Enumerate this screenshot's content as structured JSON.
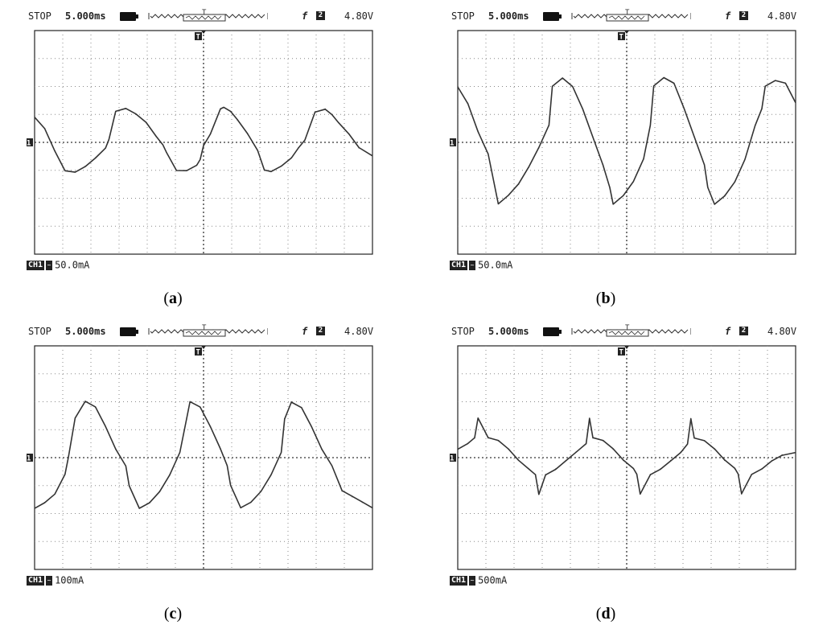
{
  "panels": [
    {
      "status": {
        "mode": "STOP",
        "timebase": "5.000ms",
        "trigger_slope": "f",
        "trigger_channel": "2",
        "trigger_level": "4.80V"
      },
      "trigger_marker": "T",
      "channel_marker": "1",
      "channel": {
        "tag": "CH1",
        "coupling_icon": "ac-coupling-icon",
        "scale": "50.0mA"
      },
      "caption": {
        "open": "(",
        "letter": "a",
        "close": ")"
      }
    },
    {
      "status": {
        "mode": "STOP",
        "timebase": "5.000ms",
        "trigger_slope": "f",
        "trigger_channel": "2",
        "trigger_level": "4.80V"
      },
      "trigger_marker": "T",
      "channel_marker": "1",
      "channel": {
        "tag": "CH1",
        "coupling_icon": "ac-coupling-icon",
        "scale": "50.0mA"
      },
      "caption": {
        "open": "(",
        "letter": "b",
        "close": ")"
      }
    },
    {
      "status": {
        "mode": "STOP",
        "timebase": "5.000ms",
        "trigger_slope": "f",
        "trigger_channel": "2",
        "trigger_level": "4.80V"
      },
      "trigger_marker": "T",
      "channel_marker": "1",
      "channel": {
        "tag": "CH1",
        "coupling_icon": "ac-coupling-icon",
        "scale": "100mA"
      },
      "caption": {
        "open": "(",
        "letter": "c",
        "close": ")"
      }
    },
    {
      "status": {
        "mode": "STOP",
        "timebase": "5.000ms",
        "trigger_slope": "f",
        "trigger_channel": "2",
        "trigger_level": "4.80V"
      },
      "trigger_marker": "T",
      "channel_marker": "1",
      "channel": {
        "tag": "CH1",
        "coupling_icon": "dc-coupling-icon",
        "scale": "500mA"
      },
      "caption": {
        "open": "(",
        "letter": "d",
        "close": ")"
      }
    }
  ],
  "chart_data": [
    {
      "type": "line",
      "xlim": [
        0,
        50
      ],
      "ylim": [
        -4,
        4
      ],
      "grid": true,
      "series": [
        {
          "x": [
            0,
            1.5,
            3,
            4.5,
            6,
            7.5,
            9,
            10.5,
            11,
            12,
            13.5,
            15,
            16.5,
            18,
            19,
            19.5,
            21,
            22.5,
            24,
            24.5,
            25,
            26,
            27.5,
            28,
            29,
            30,
            31.5,
            33,
            34,
            35,
            36.5,
            38,
            39,
            40,
            41.5,
            43,
            44,
            45,
            46.5,
            48,
            50
          ],
          "y": [
            0.9,
            0.5,
            -0.3,
            -1.0,
            -1.05,
            -0.85,
            -0.55,
            -0.2,
            0.1,
            1.1,
            1.2,
            1.0,
            0.7,
            0.2,
            -0.1,
            -0.35,
            -1.0,
            -1.0,
            -0.8,
            -0.6,
            -0.1,
            0.3,
            1.2,
            1.25,
            1.1,
            0.8,
            0.3,
            -0.3,
            -1.0,
            -1.05,
            -0.85,
            -0.55,
            -0.2,
            0.1,
            1.1,
            1.2,
            1.0,
            0.7,
            0.3,
            -0.2,
            -0.5
          ]
        }
      ]
    },
    {
      "type": "line",
      "xlim": [
        0,
        50
      ],
      "ylim": [
        -4,
        4
      ],
      "grid": true,
      "series": [
        {
          "x": [
            0,
            1.5,
            3,
            4.5,
            5,
            6,
            7.5,
            9,
            10.5,
            12,
            13.5,
            14,
            15.5,
            17,
            18.5,
            20,
            21.5,
            22.5,
            23,
            24.5,
            26,
            27.5,
            28.5,
            29,
            30.5,
            32,
            33.5,
            35,
            36.5,
            37,
            38,
            39.5,
            41,
            42.5,
            44,
            45,
            45.5,
            47,
            48.5,
            50
          ],
          "y": [
            2.0,
            1.4,
            0.4,
            -0.4,
            -1.0,
            -2.2,
            -1.9,
            -1.5,
            -0.9,
            -0.2,
            0.6,
            2.0,
            2.3,
            2.0,
            1.2,
            0.2,
            -0.8,
            -1.6,
            -2.2,
            -1.9,
            -1.4,
            -0.6,
            0.6,
            2.0,
            2.3,
            2.1,
            1.2,
            0.2,
            -0.8,
            -1.6,
            -2.2,
            -1.9,
            -1.4,
            -0.6,
            0.6,
            1.2,
            2.0,
            2.2,
            2.1,
            1.4
          ]
        }
      ]
    },
    {
      "type": "line",
      "xlim": [
        0,
        50
      ],
      "ylim": [
        -4,
        4
      ],
      "grid": true,
      "series": [
        {
          "x": [
            0,
            1.5,
            3,
            4.5,
            5,
            6,
            7.5,
            9,
            10.5,
            12,
            13.5,
            14,
            15.5,
            17,
            18.5,
            20,
            21.5,
            22.5,
            23,
            24.5,
            26,
            27.5,
            28.5,
            29,
            30.5,
            32,
            33.5,
            35,
            36.5,
            37,
            38,
            39.5,
            41,
            42.5,
            44,
            45,
            45.5,
            47,
            48.5,
            50
          ],
          "y": [
            -1.8,
            -1.6,
            -1.3,
            -0.6,
            0.0,
            1.4,
            2.0,
            1.8,
            1.1,
            0.3,
            -0.3,
            -1.0,
            -1.8,
            -1.6,
            -1.2,
            -0.6,
            0.2,
            1.4,
            2.0,
            1.8,
            1.1,
            0.3,
            -0.3,
            -1.0,
            -1.8,
            -1.6,
            -1.2,
            -0.6,
            0.2,
            1.4,
            2.0,
            1.8,
            1.1,
            0.3,
            -0.3,
            -0.9,
            -1.2,
            -1.4,
            -1.6,
            -1.8
          ]
        }
      ]
    },
    {
      "type": "line",
      "xlim": [
        0,
        50
      ],
      "ylim": [
        -4,
        4
      ],
      "grid": true,
      "series": [
        {
          "x": [
            0,
            1.5,
            2.5,
            3,
            4.5,
            6,
            7.5,
            9,
            10.5,
            11.5,
            12,
            13,
            14.5,
            16,
            17.5,
            19,
            19.5,
            20,
            21.5,
            23,
            24.5,
            26,
            26.5,
            27,
            28.5,
            30,
            31.5,
            33,
            34,
            34.5,
            35,
            36.5,
            38,
            39.5,
            41,
            41.5,
            42,
            43.5,
            45,
            46.5,
            48,
            50
          ],
          "y": [
            0.3,
            0.5,
            0.7,
            1.4,
            0.7,
            0.6,
            0.3,
            -0.1,
            -0.4,
            -0.6,
            -1.3,
            -0.6,
            -0.4,
            -0.1,
            0.2,
            0.5,
            1.4,
            0.7,
            0.6,
            0.3,
            -0.1,
            -0.4,
            -0.6,
            -1.3,
            -0.6,
            -0.4,
            -0.1,
            0.2,
            0.5,
            1.4,
            0.7,
            0.6,
            0.3,
            -0.1,
            -0.4,
            -0.6,
            -1.3,
            -0.6,
            -0.4,
            -0.1,
            0.1,
            0.2
          ]
        }
      ]
    }
  ]
}
